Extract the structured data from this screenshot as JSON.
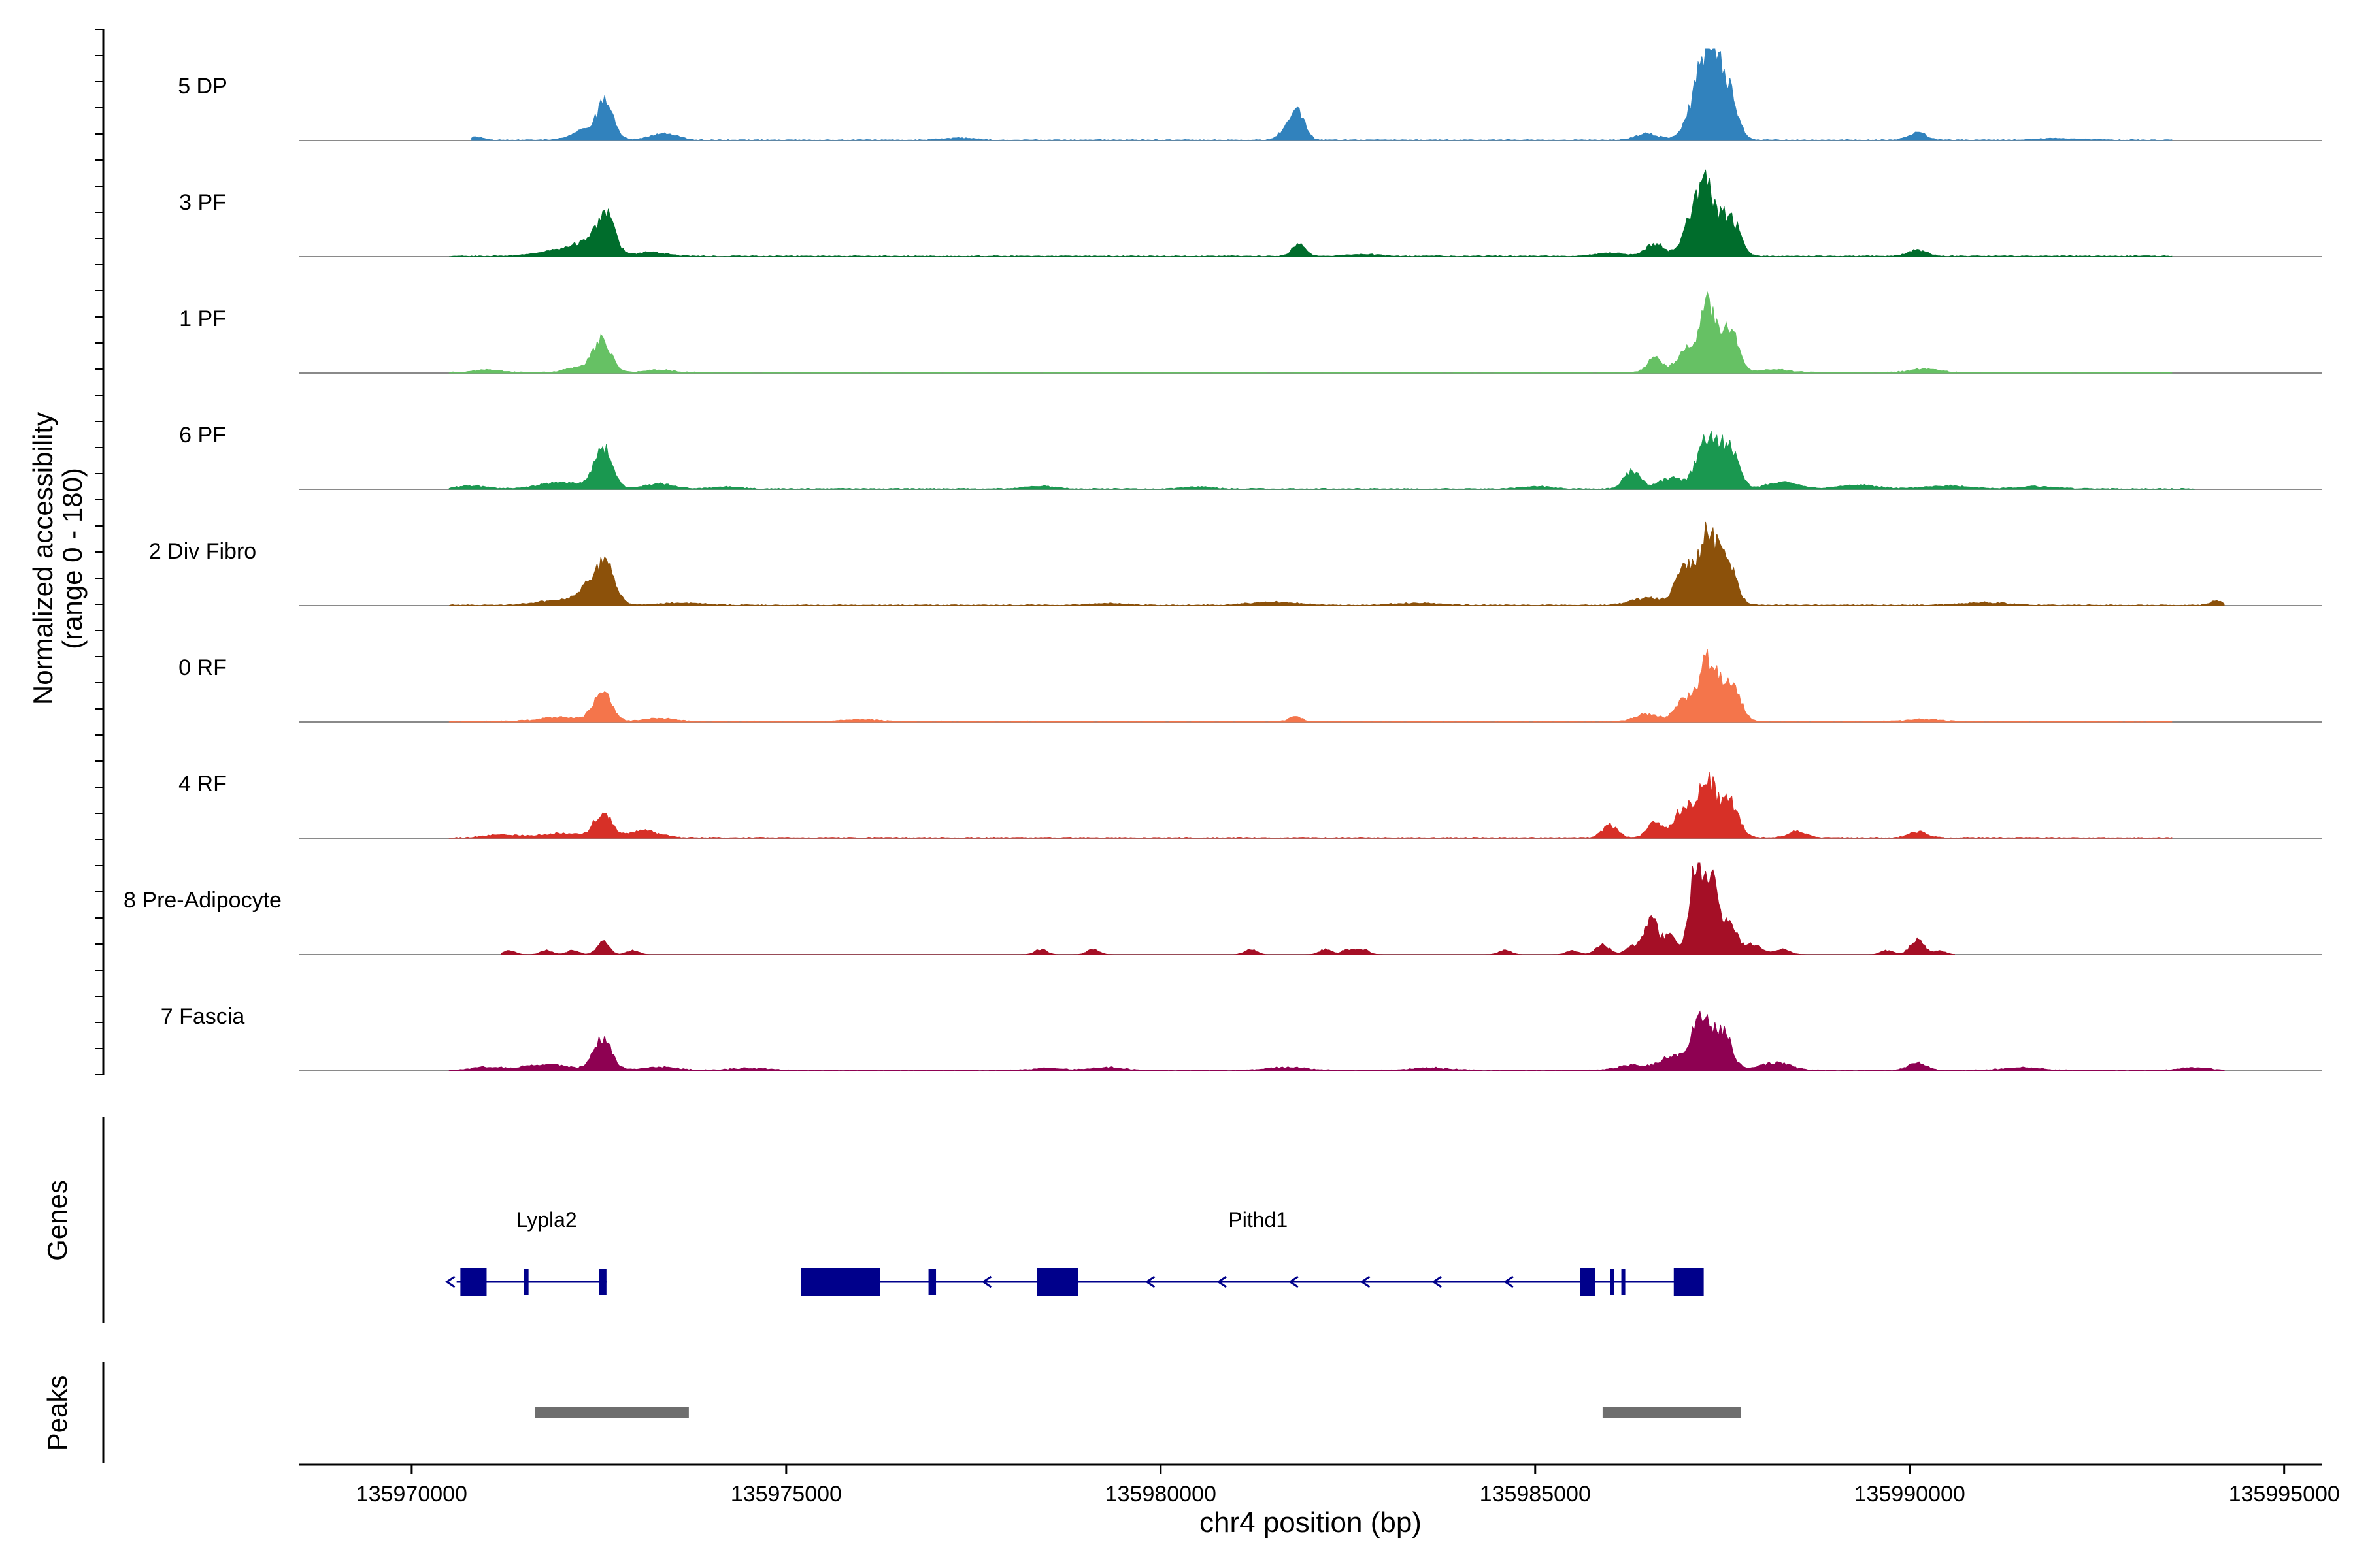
{
  "chart_data": {
    "type": "area",
    "title": "",
    "ylabel_line1": "Normalized accessibility",
    "ylabel_line2": "(range 0 - 180)",
    "xlabel": "chr4 position (bp)",
    "xlim": [
      135968500,
      135995500
    ],
    "ylim": [
      0,
      180
    ],
    "xticks": [
      {
        "value": 135970000,
        "label": "135970000"
      },
      {
        "value": 135975000,
        "label": "135975000"
      },
      {
        "value": 135980000,
        "label": "135980000"
      },
      {
        "value": 135985000,
        "label": "135985000"
      },
      {
        "value": 135990000,
        "label": "135990000"
      },
      {
        "value": 135995000,
        "label": "135995000"
      }
    ],
    "tracks": [
      {
        "name": "5 DP",
        "color": "#3182bd",
        "start": 135970800,
        "end": 135993500,
        "base": 2,
        "peaks": [
          [
            135970850,
            5,
            100
          ],
          [
            135972400,
            25,
            200
          ],
          [
            135972600,
            60,
            100
          ],
          [
            135973300,
            10,
            150
          ],
          [
            135973500,
            6,
            120
          ],
          [
            135977300,
            4,
            200
          ],
          [
            135981700,
            25,
            100
          ],
          [
            135981850,
            45,
            90
          ],
          [
            135986500,
            12,
            150
          ],
          [
            135987100,
            55,
            120
          ],
          [
            135987300,
            155,
            110
          ],
          [
            135987500,
            95,
            110
          ],
          [
            135987650,
            40,
            100
          ],
          [
            135990100,
            14,
            120
          ],
          [
            135992000,
            3,
            300
          ]
        ]
      },
      {
        "name": "3 PF",
        "color": "#006d2c",
        "start": 135970500,
        "end": 135993500,
        "base": 2,
        "peaks": [
          [
            135972000,
            12,
            300
          ],
          [
            135972400,
            25,
            200
          ],
          [
            135972600,
            70,
            110
          ],
          [
            135973200,
            8,
            200
          ],
          [
            135981850,
            25,
            90
          ],
          [
            135982700,
            4,
            200
          ],
          [
            135986000,
            6,
            200
          ],
          [
            135986600,
            25,
            120
          ],
          [
            135987100,
            70,
            130
          ],
          [
            135987300,
            120,
            110
          ],
          [
            135987600,
            80,
            120
          ],
          [
            135990100,
            13,
            120
          ]
        ]
      },
      {
        "name": "1 PF",
        "color": "#66c164",
        "start": 135970500,
        "end": 135993500,
        "base": 2,
        "peaks": [
          [
            135971000,
            5,
            200
          ],
          [
            135972300,
            12,
            200
          ],
          [
            135972550,
            62,
            110
          ],
          [
            135973300,
            5,
            200
          ],
          [
            135986600,
            28,
            100
          ],
          [
            135987000,
            40,
            120
          ],
          [
            135987300,
            140,
            110
          ],
          [
            135987600,
            85,
            110
          ],
          [
            135988200,
            6,
            200
          ],
          [
            135990200,
            7,
            200
          ]
        ]
      },
      {
        "name": "6 PF",
        "color": "#1a9850",
        "start": 135970500,
        "end": 135993800,
        "base": 2,
        "peaks": [
          [
            135970800,
            6,
            200
          ],
          [
            135972000,
            12,
            300
          ],
          [
            135972550,
            80,
            120
          ],
          [
            135973300,
            10,
            200
          ],
          [
            135974200,
            4,
            200
          ],
          [
            135978400,
            5,
            200
          ],
          [
            135980500,
            4,
            200
          ],
          [
            135985000,
            5,
            200
          ],
          [
            135986300,
            35,
            110
          ],
          [
            135986800,
            22,
            150
          ],
          [
            135987300,
            100,
            140
          ],
          [
            135987600,
            75,
            120
          ],
          [
            135988300,
            14,
            200
          ],
          [
            135989300,
            8,
            250
          ],
          [
            135990500,
            6,
            300
          ],
          [
            135991700,
            5,
            250
          ]
        ]
      },
      {
        "name": "2 Div Fibro",
        "color": "#8c510a",
        "start": 135970500,
        "end": 135994200,
        "base": 2,
        "peaks": [
          [
            135972000,
            10,
            300
          ],
          [
            135972400,
            35,
            150
          ],
          [
            135972600,
            65,
            120
          ],
          [
            135973600,
            4,
            300
          ],
          [
            135979300,
            4,
            200
          ],
          [
            135981500,
            6,
            300
          ],
          [
            135983400,
            4,
            300
          ],
          [
            135986500,
            15,
            200
          ],
          [
            135987000,
            80,
            120
          ],
          [
            135987300,
            130,
            110
          ],
          [
            135987550,
            90,
            120
          ],
          [
            135991000,
            5,
            300
          ],
          [
            135994100,
            8,
            80
          ]
        ]
      },
      {
        "name": "0 RF",
        "color": "#f4754b",
        "start": 135970500,
        "end": 135993500,
        "base": 2,
        "peaks": [
          [
            135972000,
            8,
            300
          ],
          [
            135972550,
            55,
            120
          ],
          [
            135973300,
            6,
            200
          ],
          [
            135976000,
            4,
            200
          ],
          [
            135981800,
            10,
            80
          ],
          [
            135986500,
            15,
            150
          ],
          [
            135987000,
            45,
            120
          ],
          [
            135987300,
            120,
            110
          ],
          [
            135987600,
            85,
            120
          ],
          [
            135990200,
            4,
            200
          ]
        ]
      },
      {
        "name": "4 RF",
        "color": "#d73027",
        "start": 135970500,
        "end": 135993500,
        "base": 2,
        "peaks": [
          [
            135971200,
            6,
            200
          ],
          [
            135972000,
            8,
            300
          ],
          [
            135972550,
            50,
            110
          ],
          [
            135973100,
            15,
            200
          ],
          [
            135986000,
            25,
            100
          ],
          [
            135986600,
            30,
            100
          ],
          [
            135987000,
            60,
            130
          ],
          [
            135987300,
            110,
            110
          ],
          [
            135987600,
            70,
            120
          ],
          [
            135988500,
            12,
            120
          ],
          [
            135990100,
            12,
            120
          ]
        ]
      },
      {
        "name": "8 Pre-Adipocyte",
        "color": "#a50f26",
        "start": 135971200,
        "end": 135990600,
        "base": 0,
        "peaks": [
          [
            135971300,
            8,
            80
          ],
          [
            135971800,
            8,
            80
          ],
          [
            135972150,
            8,
            80
          ],
          [
            135972550,
            25,
            80
          ],
          [
            135972950,
            8,
            80
          ],
          [
            135978400,
            10,
            80
          ],
          [
            135979100,
            10,
            80
          ],
          [
            135981200,
            10,
            80
          ],
          [
            135982200,
            10,
            80
          ],
          [
            135982500,
            10,
            80
          ],
          [
            135982700,
            10,
            80
          ],
          [
            135984600,
            8,
            80
          ],
          [
            135985500,
            8,
            80
          ],
          [
            135985900,
            20,
            90
          ],
          [
            135986300,
            15,
            90
          ],
          [
            135986550,
            70,
            90
          ],
          [
            135986800,
            35,
            90
          ],
          [
            135987150,
            175,
            90
          ],
          [
            135987350,
            140,
            90
          ],
          [
            135987600,
            60,
            90
          ],
          [
            135987900,
            20,
            120
          ],
          [
            135988300,
            10,
            100
          ],
          [
            135989700,
            8,
            80
          ],
          [
            135990100,
            30,
            90
          ],
          [
            135990400,
            8,
            80
          ]
        ]
      },
      {
        "name": "7 Fascia",
        "color": "#8e0152",
        "start": 135970500,
        "end": 135994200,
        "base": 2,
        "peaks": [
          [
            135971000,
            6,
            200
          ],
          [
            135971800,
            12,
            300
          ],
          [
            135972550,
            60,
            120
          ],
          [
            135973300,
            6,
            250
          ],
          [
            135974500,
            4,
            250
          ],
          [
            135978500,
            4,
            200
          ],
          [
            135979300,
            6,
            200
          ],
          [
            135981700,
            6,
            250
          ],
          [
            135983600,
            5,
            250
          ],
          [
            135986300,
            10,
            200
          ],
          [
            135986800,
            25,
            150
          ],
          [
            135987200,
            100,
            130
          ],
          [
            135987500,
            75,
            120
          ],
          [
            135988200,
            15,
            200
          ],
          [
            135990100,
            15,
            120
          ],
          [
            135991500,
            5,
            250
          ],
          [
            135993800,
            5,
            200
          ]
        ]
      }
    ],
    "genes": [
      {
        "name": "Lypla2",
        "label_pos": 135971800,
        "strand": "-",
        "start": 135970600,
        "end": 135972600,
        "exons": [
          [
            135970650,
            135971000
          ],
          [
            135971500,
            135971560
          ],
          [
            135972500,
            135972600
          ]
        ]
      },
      {
        "name": "Pithd1",
        "label_pos": 135981300,
        "strand": "-",
        "start": 135975200,
        "end": 135987200,
        "exons": [
          [
            135975200,
            135976250
          ],
          [
            135976900,
            135977000
          ],
          [
            135978350,
            135978900
          ],
          [
            135985600,
            135985800
          ],
          [
            135986000,
            135986050
          ],
          [
            135986150,
            135986200
          ],
          [
            135986850,
            135987250
          ]
        ]
      }
    ],
    "peaks": [
      {
        "start": 135971650,
        "end": 135973700
      },
      {
        "start": 135985900,
        "end": 135987750
      }
    ]
  },
  "panel_labels": {
    "genes": "Genes",
    "peaks": "Peaks"
  }
}
